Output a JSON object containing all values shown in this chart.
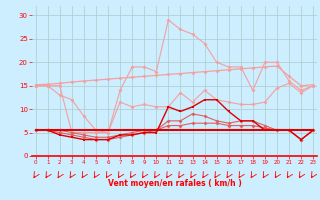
{
  "x": [
    0,
    1,
    2,
    3,
    4,
    5,
    6,
    7,
    8,
    9,
    10,
    11,
    12,
    13,
    14,
    15,
    16,
    17,
    18,
    19,
    20,
    21,
    22,
    23
  ],
  "gust_line": [
    15,
    15,
    15,
    5,
    5,
    5,
    5,
    14,
    19,
    19,
    18,
    29,
    27,
    26,
    24,
    20,
    19,
    19,
    14,
    20,
    20,
    16,
    14,
    15
  ],
  "rise_line": [
    15.2,
    15.3,
    15.5,
    15.8,
    16.0,
    16.2,
    16.4,
    16.6,
    16.8,
    17.0,
    17.2,
    17.4,
    17.6,
    17.8,
    18.0,
    18.2,
    18.4,
    18.6,
    18.8,
    19.0,
    19.2,
    17.0,
    15.0,
    15.2
  ],
  "wavy_line": [
    15,
    15,
    13,
    12,
    8.5,
    5.5,
    5.0,
    11.5,
    10.5,
    11,
    10.5,
    10.5,
    13.5,
    11.5,
    14,
    12,
    11.5,
    11,
    11,
    11.5,
    14.5,
    15.5,
    13.5,
    15
  ],
  "med_line1": [
    5.5,
    5.5,
    5.5,
    5.0,
    4.5,
    4.0,
    4.0,
    4.5,
    5.0,
    5.5,
    5.5,
    7.5,
    7.5,
    9.0,
    8.5,
    7.5,
    7.0,
    7.5,
    7.5,
    6.5,
    5.5,
    5.5,
    3.5,
    5.5
  ],
  "med_line2": [
    5.5,
    5.5,
    5.0,
    4.5,
    4.0,
    3.5,
    3.5,
    4.0,
    4.5,
    5.0,
    5.5,
    6.5,
    6.5,
    7.0,
    7.0,
    7.0,
    6.5,
    6.5,
    6.5,
    6.0,
    5.5,
    5.5,
    3.5,
    5.5
  ],
  "dark_line1": [
    5.5,
    5.5,
    4.5,
    4.0,
    3.5,
    3.5,
    3.5,
    4.5,
    4.5,
    5.0,
    5.0,
    10.5,
    9.5,
    10.5,
    12.0,
    12.0,
    9.5,
    7.5,
    7.5,
    5.5,
    5.5,
    5.5,
    3.5,
    5.5
  ],
  "flat_line": [
    5.5,
    5.5,
    5.5,
    5.5,
    5.5,
    5.5,
    5.5,
    5.5,
    5.5,
    5.5,
    5.5,
    5.5,
    5.5,
    5.5,
    5.5,
    5.5,
    5.5,
    5.5,
    5.5,
    5.5,
    5.5,
    5.5,
    5.5,
    5.5
  ],
  "flat_line2": [
    5.5,
    5.5,
    5.5,
    5.5,
    5.5,
    5.5,
    5.5,
    5.5,
    5.5,
    5.5,
    5.5,
    5.5,
    5.5,
    5.5,
    5.5,
    5.5,
    5.5,
    5.5,
    5.5,
    5.5,
    5.5,
    5.5,
    5.5,
    5.5
  ],
  "bg_color": "#cceeff",
  "grid_color": "#aacccc",
  "color_light": "#f4a0a0",
  "color_medium": "#e06060",
  "color_dark": "#dd0000",
  "xlabel": "Vent moyen/en rafales ( km/h )",
  "yticks": [
    0,
    5,
    10,
    15,
    20,
    25,
    30
  ],
  "xticks": [
    0,
    1,
    2,
    3,
    4,
    5,
    6,
    7,
    8,
    9,
    10,
    11,
    12,
    13,
    14,
    15,
    16,
    17,
    18,
    19,
    20,
    21,
    22,
    23
  ],
  "xlim": [
    -0.3,
    23.3
  ],
  "ylim": [
    0,
    32
  ]
}
